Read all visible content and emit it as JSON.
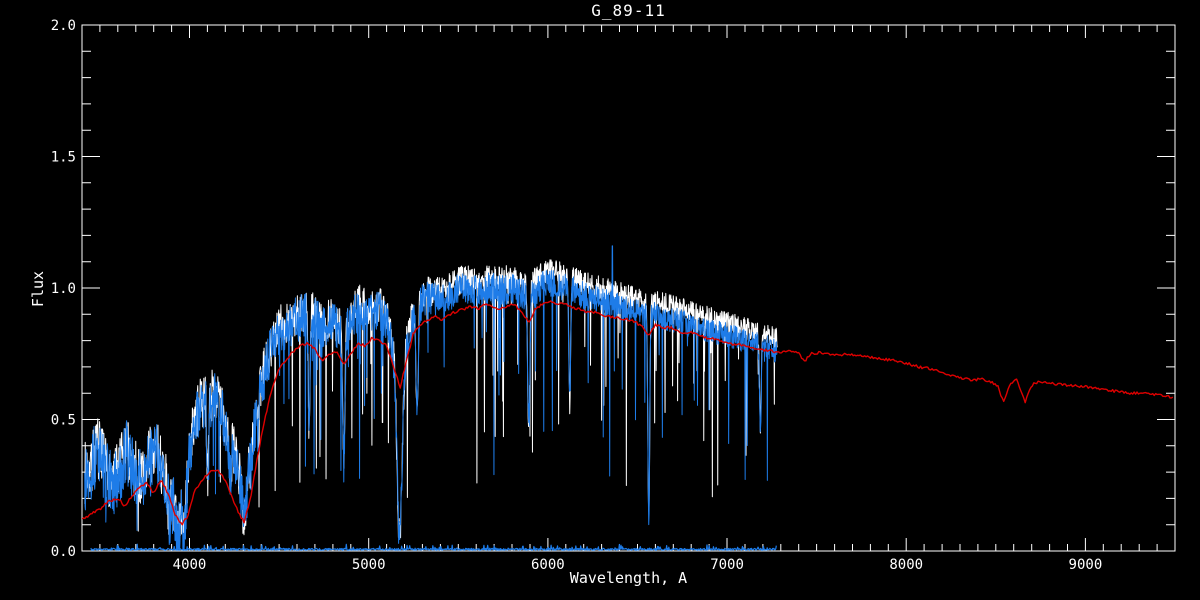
{
  "title": "G_89-11",
  "colors": {
    "background": "#000000",
    "axes": "#ffffff",
    "text": "#ffffff",
    "observed_spectrum": "#1e7ce8",
    "template_spectrum": "#dd0000",
    "comparison_spectrum": "#ffffff"
  },
  "chart_data": {
    "type": "line",
    "title": "G_89-11",
    "xlabel": "Wavelength, A",
    "ylabel": "Flux",
    "xlim": [
      3400,
      9500
    ],
    "ylim": [
      0.0,
      2.0
    ],
    "x_major_ticks": [
      4000,
      5000,
      6000,
      7000,
      8000,
      9000
    ],
    "y_major_ticks": [
      0.0,
      0.5,
      1.0,
      1.5,
      2.0
    ],
    "x_minor_tick_interval": 100,
    "y_minor_tick_interval": 0.1,
    "grid": false,
    "legend": null,
    "frame": "box-with-inward-ticks",
    "absorption_lines": [
      {
        "x": 3889,
        "min": 0.12,
        "w": 5
      },
      {
        "x": 3934,
        "min": 0.05,
        "w": 8
      },
      {
        "x": 3969,
        "min": 0.07,
        "w": 8
      },
      {
        "x": 4102,
        "min": 0.28,
        "w": 5
      },
      {
        "x": 4227,
        "min": 0.25,
        "w": 5
      },
      {
        "x": 4305,
        "min": 0.14,
        "w": 12
      },
      {
        "x": 4340,
        "min": 0.32,
        "w": 5
      },
      {
        "x": 4383,
        "min": 0.45,
        "w": 4
      },
      {
        "x": 4668,
        "min": 0.45,
        "w": 5
      },
      {
        "x": 4861,
        "min": 0.34,
        "w": 6
      },
      {
        "x": 5172,
        "min": 0.05,
        "w": 13
      },
      {
        "x": 5270,
        "min": 0.5,
        "w": 6
      },
      {
        "x": 5893,
        "min": 0.48,
        "w": 6
      },
      {
        "x": 6122,
        "min": 0.55,
        "w": 5
      },
      {
        "x": 6563,
        "min": 0.12,
        "w": 5
      },
      {
        "x": 7186,
        "min": 0.48,
        "w": 5
      }
    ],
    "emission_spikes": [
      {
        "series": "observed-spectrum-blue",
        "x": 6360,
        "flux": 1.16
      }
    ],
    "series": [
      {
        "name": "comparison-spectrum-white",
        "color": "#ffffff",
        "stroke_width": 1,
        "style": "noisy",
        "x_start": 3416,
        "x_end": 7280,
        "step": 2,
        "seed": 7,
        "base_ref": "observed-spectrum-blue",
        "offset": [
          [
            3416,
            0.015
          ],
          [
            5000,
            0.02
          ],
          [
            5400,
            0.03
          ],
          [
            6000,
            0.045
          ],
          [
            7280,
            0.05
          ]
        ],
        "noise_amp": [
          [
            3416,
            0.12
          ],
          [
            3900,
            0.11
          ],
          [
            4000,
            0.1
          ],
          [
            4300,
            0.095
          ],
          [
            4500,
            0.085
          ],
          [
            4800,
            0.075
          ],
          [
            5200,
            0.065
          ],
          [
            5600,
            0.055
          ],
          [
            6000,
            0.05
          ],
          [
            6500,
            0.045
          ],
          [
            7280,
            0.04
          ]
        ],
        "spike_prob": 0.05,
        "spike_max": 0.8,
        "apply_lines": true
      },
      {
        "name": "sky-zero-line",
        "color": "#1e7ce8",
        "stroke_width": 1.2,
        "style": "noisy",
        "x_start": 3450,
        "x_end": 7275,
        "step": 3,
        "seed": 3,
        "base": [
          [
            3450,
            0.006
          ],
          [
            7275,
            0.006
          ]
        ],
        "noise_amp": 0.004,
        "spike_prob": 0.12,
        "spike_max": -0.018,
        "apply_lines": false
      },
      {
        "name": "observed-spectrum-blue",
        "color": "#1e7ce8",
        "stroke_width": 1,
        "style": "noisy",
        "x_start": 3415,
        "x_end": 7280,
        "step": 2,
        "seed": 13,
        "base": [
          [
            3415,
            0.28
          ],
          [
            3450,
            0.32
          ],
          [
            3490,
            0.38
          ],
          [
            3530,
            0.3
          ],
          [
            3570,
            0.24
          ],
          [
            3610,
            0.3
          ],
          [
            3650,
            0.38
          ],
          [
            3690,
            0.3
          ],
          [
            3730,
            0.26
          ],
          [
            3770,
            0.33
          ],
          [
            3810,
            0.38
          ],
          [
            3850,
            0.3
          ],
          [
            3890,
            0.2
          ],
          [
            3920,
            0.16
          ],
          [
            3950,
            0.13
          ],
          [
            3980,
            0.22
          ],
          [
            4010,
            0.42
          ],
          [
            4050,
            0.53
          ],
          [
            4100,
            0.57
          ],
          [
            4150,
            0.58
          ],
          [
            4200,
            0.48
          ],
          [
            4240,
            0.38
          ],
          [
            4280,
            0.28
          ],
          [
            4310,
            0.24
          ],
          [
            4340,
            0.36
          ],
          [
            4380,
            0.55
          ],
          [
            4420,
            0.68
          ],
          [
            4460,
            0.78
          ],
          [
            4500,
            0.83
          ],
          [
            4550,
            0.86
          ],
          [
            4600,
            0.88
          ],
          [
            4650,
            0.9
          ],
          [
            4700,
            0.88
          ],
          [
            4750,
            0.85
          ],
          [
            4800,
            0.87
          ],
          [
            4860,
            0.81
          ],
          [
            4900,
            0.88
          ],
          [
            4950,
            0.92
          ],
          [
            5000,
            0.9
          ],
          [
            5050,
            0.92
          ],
          [
            5100,
            0.88
          ],
          [
            5150,
            0.72
          ],
          [
            5185,
            0.62
          ],
          [
            5220,
            0.82
          ],
          [
            5260,
            0.92
          ],
          [
            5300,
            0.95
          ],
          [
            5350,
            0.96
          ],
          [
            5400,
            0.95
          ],
          [
            5450,
            0.97
          ],
          [
            5500,
            0.99
          ],
          [
            5550,
            1.0
          ],
          [
            5600,
            0.99
          ],
          [
            5650,
            1.0
          ],
          [
            5700,
            1.0
          ],
          [
            5750,
            0.99
          ],
          [
            5800,
            1.0
          ],
          [
            5850,
            0.98
          ],
          [
            5900,
            0.97
          ],
          [
            5950,
            1.0
          ],
          [
            6000,
            1.02
          ],
          [
            6050,
            1.01
          ],
          [
            6100,
            1.0
          ],
          [
            6150,
            0.99
          ],
          [
            6200,
            0.97
          ],
          [
            6250,
            0.96
          ],
          [
            6300,
            0.95
          ],
          [
            6350,
            0.94
          ],
          [
            6400,
            0.93
          ],
          [
            6450,
            0.92
          ],
          [
            6500,
            0.91
          ],
          [
            6550,
            0.89
          ],
          [
            6600,
            0.9
          ],
          [
            6650,
            0.89
          ],
          [
            6700,
            0.88
          ],
          [
            6750,
            0.87
          ],
          [
            6800,
            0.86
          ],
          [
            6850,
            0.85
          ],
          [
            6900,
            0.84
          ],
          [
            6950,
            0.83
          ],
          [
            7000,
            0.82
          ],
          [
            7050,
            0.81
          ],
          [
            7100,
            0.8
          ],
          [
            7150,
            0.79
          ],
          [
            7200,
            0.78
          ],
          [
            7250,
            0.77
          ],
          [
            7280,
            0.76
          ]
        ],
        "noise_amp": [
          [
            3415,
            0.13
          ],
          [
            3900,
            0.12
          ],
          [
            4000,
            0.11
          ],
          [
            4300,
            0.1
          ],
          [
            4500,
            0.09
          ],
          [
            4800,
            0.08
          ],
          [
            5200,
            0.07
          ],
          [
            5600,
            0.06
          ],
          [
            6000,
            0.055
          ],
          [
            6500,
            0.05
          ],
          [
            7280,
            0.045
          ]
        ],
        "spike_prob": 0.055,
        "spike_max": 0.8,
        "apply_lines": true
      },
      {
        "name": "template-spectrum-red",
        "color": "#dd0000",
        "stroke_width": 1.4,
        "style": "smooth",
        "x_start": 3400,
        "x_end": 9490,
        "step": 8,
        "seed": 5,
        "base": [
          [
            3400,
            0.12
          ],
          [
            3450,
            0.14
          ],
          [
            3500,
            0.16
          ],
          [
            3550,
            0.19
          ],
          [
            3600,
            0.2
          ],
          [
            3640,
            0.17
          ],
          [
            3680,
            0.21
          ],
          [
            3720,
            0.24
          ],
          [
            3760,
            0.26
          ],
          [
            3800,
            0.22
          ],
          [
            3840,
            0.27
          ],
          [
            3880,
            0.22
          ],
          [
            3920,
            0.14
          ],
          [
            3955,
            0.1
          ],
          [
            3990,
            0.13
          ],
          [
            4030,
            0.23
          ],
          [
            4070,
            0.27
          ],
          [
            4110,
            0.3
          ],
          [
            4150,
            0.31
          ],
          [
            4190,
            0.28
          ],
          [
            4230,
            0.22
          ],
          [
            4270,
            0.15
          ],
          [
            4305,
            0.11
          ],
          [
            4340,
            0.2
          ],
          [
            4380,
            0.36
          ],
          [
            4420,
            0.5
          ],
          [
            4460,
            0.62
          ],
          [
            4500,
            0.69
          ],
          [
            4540,
            0.73
          ],
          [
            4580,
            0.76
          ],
          [
            4620,
            0.78
          ],
          [
            4660,
            0.79
          ],
          [
            4700,
            0.77
          ],
          [
            4740,
            0.72
          ],
          [
            4780,
            0.75
          ],
          [
            4820,
            0.76
          ],
          [
            4861,
            0.71
          ],
          [
            4900,
            0.75
          ],
          [
            4940,
            0.79
          ],
          [
            4980,
            0.78
          ],
          [
            5020,
            0.81
          ],
          [
            5060,
            0.8
          ],
          [
            5100,
            0.78
          ],
          [
            5140,
            0.7
          ],
          [
            5175,
            0.62
          ],
          [
            5210,
            0.72
          ],
          [
            5250,
            0.83
          ],
          [
            5290,
            0.86
          ],
          [
            5330,
            0.88
          ],
          [
            5370,
            0.89
          ],
          [
            5410,
            0.88
          ],
          [
            5450,
            0.9
          ],
          [
            5490,
            0.91
          ],
          [
            5530,
            0.92
          ],
          [
            5570,
            0.93
          ],
          [
            5610,
            0.92
          ],
          [
            5650,
            0.94
          ],
          [
            5690,
            0.93
          ],
          [
            5730,
            0.92
          ],
          [
            5770,
            0.93
          ],
          [
            5810,
            0.94
          ],
          [
            5850,
            0.91
          ],
          [
            5893,
            0.87
          ],
          [
            5930,
            0.92
          ],
          [
            5970,
            0.94
          ],
          [
            6010,
            0.95
          ],
          [
            6050,
            0.94
          ],
          [
            6090,
            0.94
          ],
          [
            6130,
            0.93
          ],
          [
            6170,
            0.92
          ],
          [
            6210,
            0.91
          ],
          [
            6250,
            0.91
          ],
          [
            6290,
            0.9
          ],
          [
            6330,
            0.89
          ],
          [
            6370,
            0.89
          ],
          [
            6410,
            0.88
          ],
          [
            6450,
            0.88
          ],
          [
            6490,
            0.87
          ],
          [
            6530,
            0.85
          ],
          [
            6563,
            0.82
          ],
          [
            6600,
            0.86
          ],
          [
            6640,
            0.85
          ],
          [
            6680,
            0.85
          ],
          [
            6720,
            0.84
          ],
          [
            6760,
            0.83
          ],
          [
            6800,
            0.83
          ],
          [
            6840,
            0.82
          ],
          [
            6880,
            0.81
          ],
          [
            6920,
            0.81
          ],
          [
            6960,
            0.8
          ],
          [
            7000,
            0.79
          ],
          [
            7050,
            0.785
          ],
          [
            7100,
            0.78
          ],
          [
            7150,
            0.77
          ],
          [
            7200,
            0.765
          ],
          [
            7250,
            0.76
          ],
          [
            7300,
            0.755
          ],
          [
            7350,
            0.76
          ],
          [
            7400,
            0.75
          ],
          [
            7430,
            0.72
          ],
          [
            7470,
            0.75
          ],
          [
            7520,
            0.755
          ],
          [
            7570,
            0.75
          ],
          [
            7620,
            0.745
          ],
          [
            7670,
            0.75
          ],
          [
            7720,
            0.745
          ],
          [
            7770,
            0.74
          ],
          [
            7820,
            0.735
          ],
          [
            7870,
            0.73
          ],
          [
            7920,
            0.725
          ],
          [
            7970,
            0.72
          ],
          [
            8020,
            0.71
          ],
          [
            8070,
            0.7
          ],
          [
            8120,
            0.695
          ],
          [
            8170,
            0.685
          ],
          [
            8220,
            0.675
          ],
          [
            8270,
            0.665
          ],
          [
            8320,
            0.655
          ],
          [
            8370,
            0.65
          ],
          [
            8420,
            0.655
          ],
          [
            8470,
            0.645
          ],
          [
            8510,
            0.63
          ],
          [
            8542,
            0.565
          ],
          [
            8580,
            0.64
          ],
          [
            8620,
            0.65
          ],
          [
            8662,
            0.565
          ],
          [
            8700,
            0.63
          ],
          [
            8740,
            0.645
          ],
          [
            8790,
            0.64
          ],
          [
            8840,
            0.635
          ],
          [
            8890,
            0.63
          ],
          [
            8940,
            0.63
          ],
          [
            8990,
            0.625
          ],
          [
            9040,
            0.62
          ],
          [
            9090,
            0.615
          ],
          [
            9140,
            0.61
          ],
          [
            9190,
            0.605
          ],
          [
            9240,
            0.6
          ],
          [
            9290,
            0.6
          ],
          [
            9340,
            0.6
          ],
          [
            9390,
            0.595
          ],
          [
            9440,
            0.59
          ],
          [
            9490,
            0.585
          ]
        ],
        "noise_amp": 0.005,
        "spike_prob": 0,
        "spike_max": 0,
        "apply_lines": false
      }
    ]
  }
}
